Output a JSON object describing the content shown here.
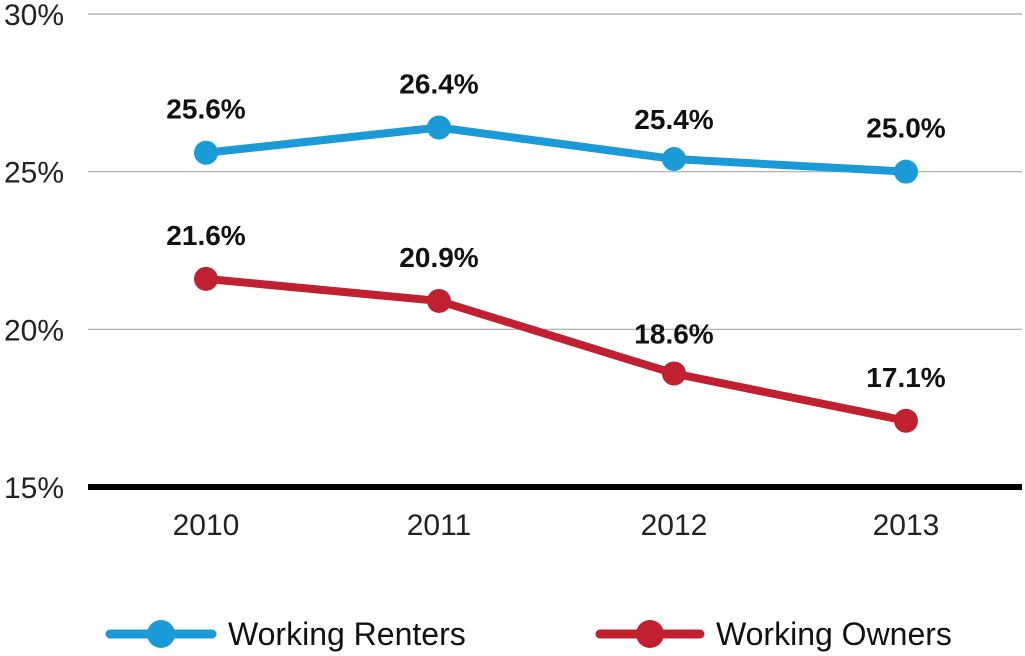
{
  "chart_data": {
    "type": "line",
    "title": "",
    "xlabel": "",
    "ylabel": "",
    "categories": [
      "2010",
      "2011",
      "2012",
      "2013"
    ],
    "ylim": [
      15,
      30
    ],
    "yticks": [
      15,
      20,
      25,
      30
    ],
    "ytick_labels": [
      "15%",
      "20%",
      "25%",
      "30%"
    ],
    "grid": true,
    "legend_position": "bottom",
    "series": [
      {
        "name": "Working Renters",
        "color": "#1a9ad6",
        "values": [
          25.6,
          26.4,
          25.4,
          25.0
        ],
        "labels": [
          "25.6%",
          "26.4%",
          "25.4%",
          "25.0%"
        ]
      },
      {
        "name": "Working Owners",
        "color": "#c0202f",
        "values": [
          21.6,
          20.9,
          18.6,
          17.1
        ],
        "labels": [
          "21.6%",
          "20.9%",
          "18.6%",
          "17.1%"
        ]
      }
    ]
  }
}
